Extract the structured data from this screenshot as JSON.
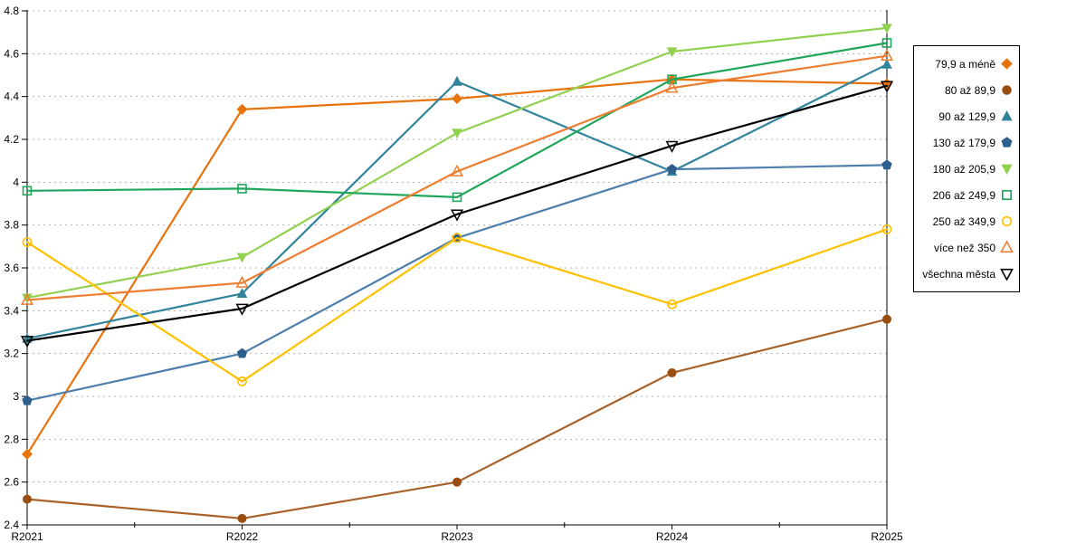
{
  "chart_data": {
    "type": "line",
    "title": "",
    "xlabel": "",
    "ylabel": "",
    "categories": [
      "R2021",
      "R2022",
      "R2023",
      "R2024",
      "R2025"
    ],
    "ylim": [
      2.4,
      4.8
    ],
    "ytick_step": 0.2,
    "ytick_labels": [
      "2.4",
      "2.6",
      "2.8",
      "3",
      "3.2",
      "3.4",
      "3.6",
      "3.8",
      "4",
      "4.2",
      "4.4",
      "4.6",
      "4.8"
    ],
    "grid": "horizontal-dashed",
    "legend_position": "right",
    "series": [
      {
        "name": "79,9 a méně",
        "marker": "diamond-filled",
        "color": "#E8720C",
        "marker_color": "#E8720C",
        "values": [
          2.73,
          4.34,
          4.39,
          4.48,
          4.46
        ]
      },
      {
        "name": "80 až 89,9",
        "marker": "circle-filled",
        "color": "#A9622A",
        "marker_color": "#9A4D10",
        "values": [
          2.52,
          2.43,
          2.6,
          3.11,
          3.36
        ]
      },
      {
        "name": "90 až 129,9",
        "marker": "triangle-up-filled",
        "color": "#31849B",
        "marker_color": "#31849B",
        "values": [
          3.27,
          3.48,
          4.47,
          4.05,
          4.55
        ]
      },
      {
        "name": "130 až 179,9",
        "marker": "pentagon-filled",
        "color": "#4E7FAC",
        "marker_color": "#2E5F8C",
        "values": [
          2.98,
          3.2,
          3.74,
          4.06,
          4.08
        ]
      },
      {
        "name": "180 až 205,9",
        "marker": "triangle-down-filled",
        "color": "#92D050",
        "marker_color": "#92D050",
        "values": [
          3.46,
          3.65,
          4.23,
          4.61,
          4.72
        ]
      },
      {
        "name": "206 až 249,9",
        "marker": "square-open",
        "color": "#1FA65C",
        "marker_color": "#1FA65C",
        "values": [
          3.96,
          3.97,
          3.93,
          4.48,
          4.65
        ]
      },
      {
        "name": "250 až 349,9",
        "marker": "circle-open",
        "color": "#FFC000",
        "marker_color": "#FFC000",
        "values": [
          3.72,
          3.07,
          3.74,
          3.43,
          3.78
        ]
      },
      {
        "name": "více než 350",
        "marker": "triangle-up-open",
        "color": "#ED7D31",
        "marker_color": "#ED7D31",
        "values": [
          3.45,
          3.53,
          4.05,
          4.44,
          4.59
        ]
      },
      {
        "name": "všechna města",
        "marker": "triangle-down-open",
        "color": "#000000",
        "marker_color": "#000000",
        "values": [
          3.26,
          3.41,
          3.85,
          4.17,
          4.45
        ]
      }
    ]
  },
  "colors": {
    "axis": "#000000",
    "gridline": "#b3b3b3",
    "text": "#000000",
    "background": "#ffffff"
  }
}
